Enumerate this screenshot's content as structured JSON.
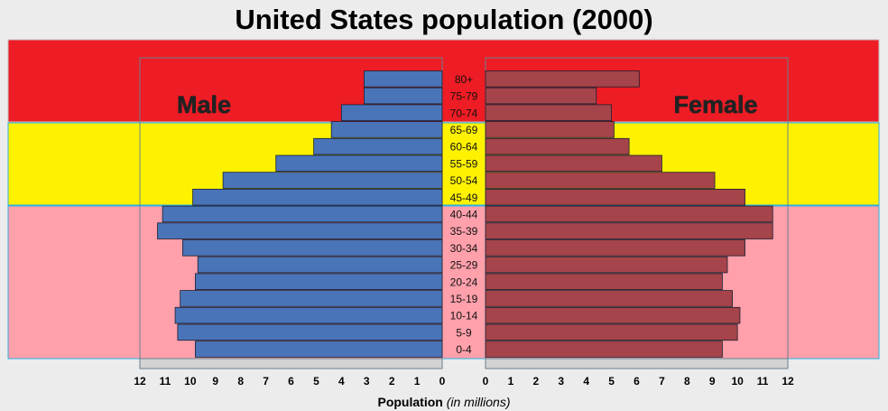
{
  "title": "United States population (2000)",
  "xlabel": {
    "main": "Population",
    "unit": "(in millions)"
  },
  "colors": {
    "male": "#4a74b8",
    "female": "#a5444a",
    "band_top": "#ee1c24",
    "band_mid": "#fff200",
    "band_low": "#ffa0ab"
  },
  "chart_data": {
    "type": "bar",
    "orientation": "horizontal",
    "title": "United States population (2000)",
    "xlabel": "Population (in millions)",
    "xlim": [
      0,
      12
    ],
    "ticks": [
      "0",
      "1",
      "2",
      "3",
      "4",
      "5",
      "6",
      "7",
      "8",
      "9",
      "10",
      "11",
      "12"
    ],
    "left_ticks": [
      "12",
      "11",
      "10",
      "9",
      "8",
      "7",
      "6",
      "5",
      "4",
      "3",
      "2",
      "1",
      "0"
    ],
    "categories": [
      "0-4",
      "5-9",
      "10-14",
      "15-19",
      "20-24",
      "25-29",
      "30-34",
      "35-39",
      "40-44",
      "45-49",
      "50-54",
      "55-59",
      "60-64",
      "65-69",
      "70-74",
      "75-79",
      "80+"
    ],
    "series": [
      {
        "name": "Male",
        "values": [
          9.8,
          10.5,
          10.6,
          10.4,
          9.8,
          9.7,
          10.3,
          11.3,
          11.1,
          9.9,
          8.7,
          6.6,
          5.1,
          4.4,
          4.0,
          3.1,
          3.1
        ]
      },
      {
        "name": "Female",
        "values": [
          9.4,
          10.0,
          10.1,
          9.8,
          9.4,
          9.6,
          10.3,
          11.4,
          11.4,
          10.3,
          9.1,
          7.0,
          5.7,
          5.1,
          5.0,
          4.4,
          6.1
        ]
      }
    ],
    "bands": [
      {
        "from": "80+",
        "to": "70-74",
        "color": "#ee1c24"
      },
      {
        "from": "65-69",
        "to": "45-49",
        "color": "#fff200"
      },
      {
        "from": "40-44",
        "to": "0-4",
        "color": "#ffa0ab"
      }
    ]
  }
}
